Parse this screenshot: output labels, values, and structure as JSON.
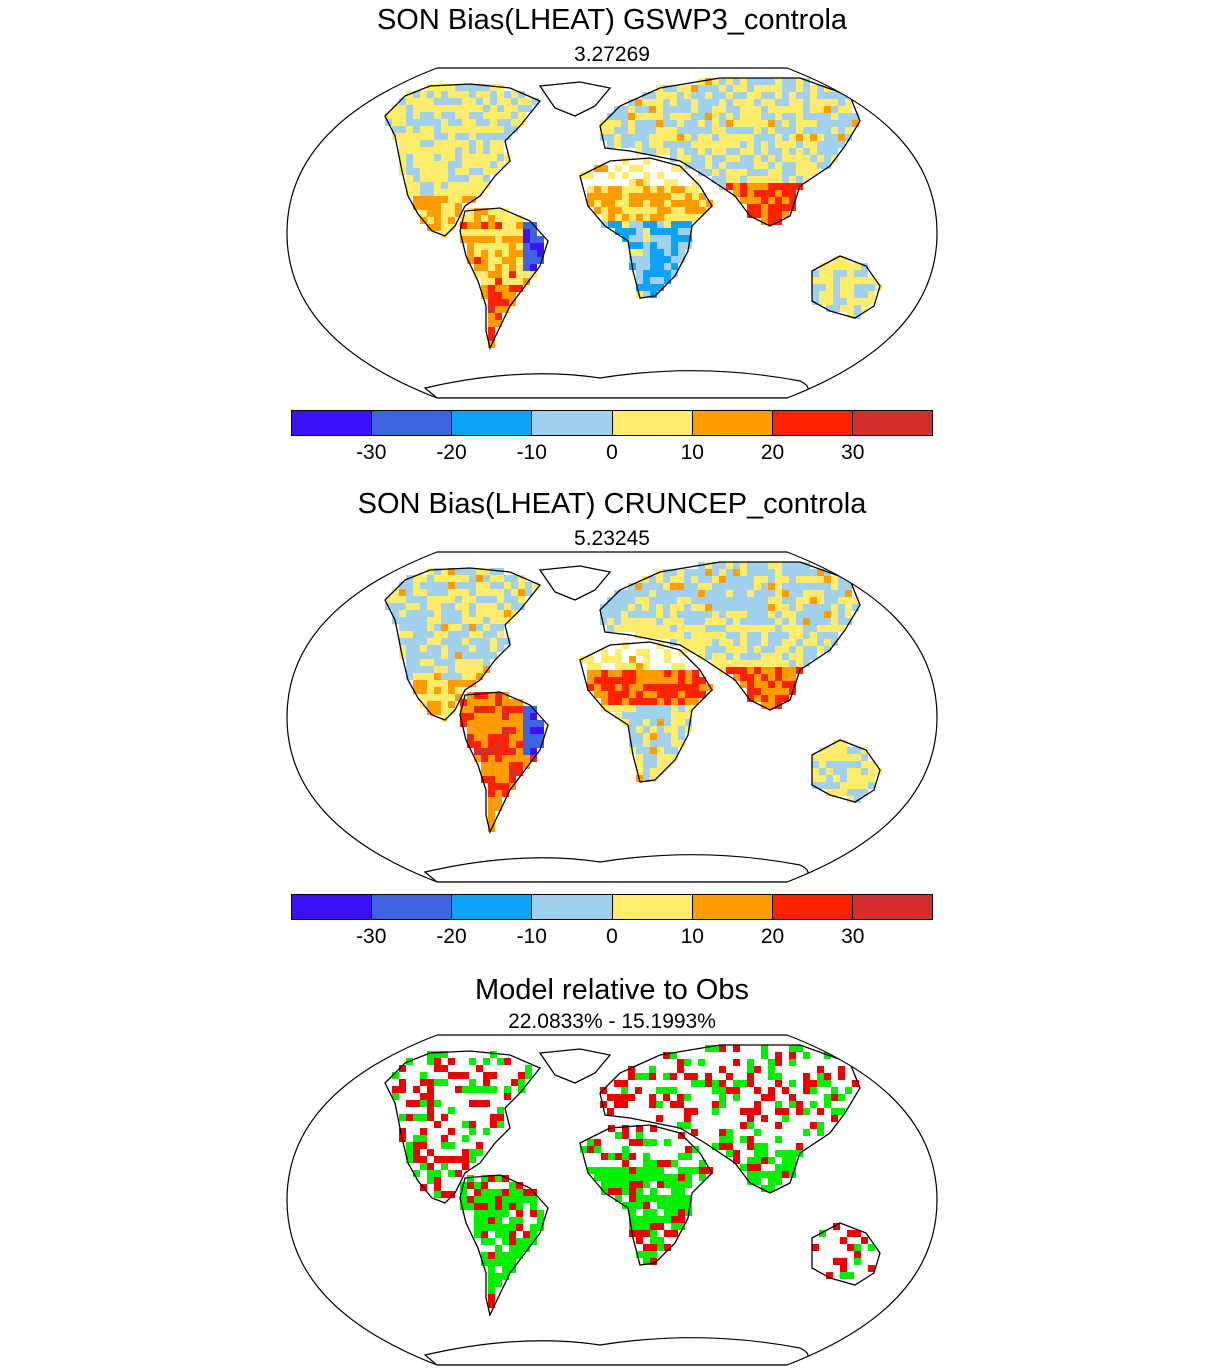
{
  "panels": [
    {
      "title": "SON Bias(LHEAT) GSWP3_controla",
      "subtitle": "3.27269"
    },
    {
      "title": "SON Bias(LHEAT) CRUNCEP_controla",
      "subtitle": "5.23245"
    },
    {
      "title": "Model relative to Obs",
      "subtitle": "22.0833% - 15.1993%"
    }
  ],
  "colorbar": {
    "colors": [
      "#3d11f5",
      "#3d63e3",
      "#0ba4f7",
      "#a1d1ec",
      "#ffec6a",
      "#ff9c00",
      "#ff2200",
      "#d42d2b"
    ],
    "tick_labels": [
      "-30",
      "-20",
      "-10",
      "0",
      "10",
      "20",
      "30"
    ]
  },
  "comparison_colors": {
    "better": "#00ee00",
    "worse": "#ee0000"
  }
}
